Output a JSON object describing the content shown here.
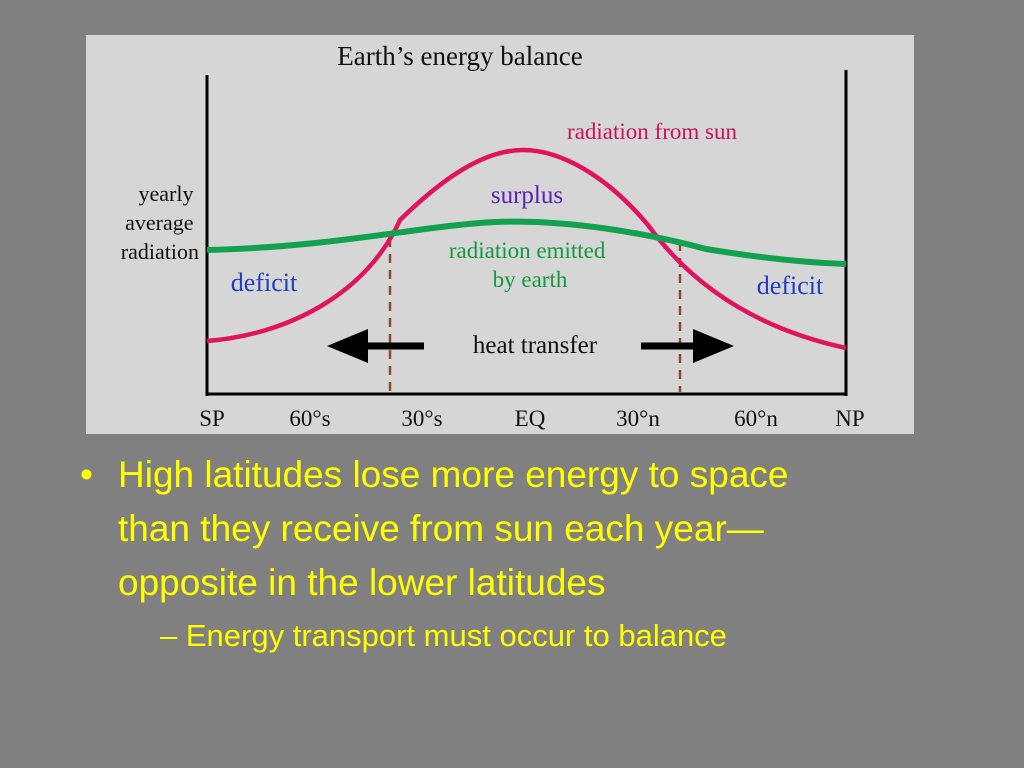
{
  "slide": {
    "figure": {
      "title": "Earth’s energy balance",
      "y_axis_label": [
        "yearly",
        "average",
        "radiation"
      ],
      "labels": {
        "radiation_from_sun": "radiation from sun",
        "surplus": "surplus",
        "radiation_emitted": [
          "radiation emitted",
          "by earth"
        ],
        "deficit_left": "deficit",
        "deficit_right": "deficit",
        "heat_transfer": "heat transfer"
      },
      "x_ticks": [
        "SP",
        "60°s",
        "30°s",
        "EQ",
        "30°n",
        "60°n",
        "NP"
      ],
      "colors": {
        "sun_curve": "#e0135f",
        "earth_curve": "#12a14e",
        "surplus_text": "#5a1fb3",
        "deficit_text": "#1f3fbf",
        "label_red": "#cc1155",
        "label_green": "#129a3e"
      }
    },
    "bullets": [
      {
        "mark": "•",
        "lines": [
          "High latitudes lose more energy to space",
          "than they receive from sun each year—",
          "opposite in the lower latitudes"
        ]
      }
    ],
    "sub_bullets": [
      {
        "mark": "–",
        "text": "Energy transport must occur to balance"
      }
    ],
    "colors": {
      "background": "#808080",
      "text": "#ffff00",
      "figure_background": "#d6d6d6"
    }
  }
}
